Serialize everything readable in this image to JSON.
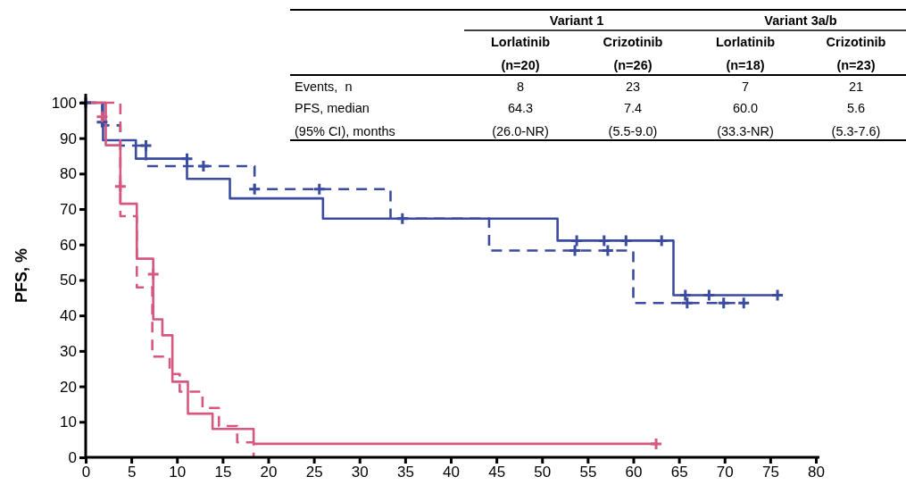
{
  "chart_data": [
    {
      "type": "step",
      "ylabel": "PFS, %",
      "xlim": [
        0,
        80
      ],
      "ylim": [
        0,
        102.5
      ],
      "xticks": [
        0,
        5,
        10,
        15,
        20,
        25,
        30,
        35,
        40,
        45,
        50,
        55,
        60,
        65,
        70,
        75,
        80
      ],
      "yticks": [
        0,
        10,
        20,
        30,
        40,
        50,
        60,
        70,
        80,
        90,
        100
      ],
      "grid": false,
      "series": [
        {
          "color": "#3a4ba0",
          "line_style": "solid",
          "x": [
            0,
            1.9,
            5.5,
            11.1,
            15.8,
            26,
            51.7,
            64.4,
            75.8
          ],
          "values": [
            100,
            89.4,
            84.2,
            78.5,
            73,
            67.3,
            61.1,
            45.7,
            45.7
          ]
        },
        {
          "color": "#3a4ba0",
          "line_style": "dashed",
          "x": [
            0,
            1.8,
            3.8,
            6.6,
            18.5,
            33.4,
            44.2,
            60,
            72.4
          ],
          "values": [
            100,
            93.6,
            87.9,
            82.1,
            75.6,
            67.3,
            58.3,
            43.5,
            43.5
          ]
        },
        {
          "color": "#d6587e",
          "line_style": "solid",
          "x": [
            0,
            2.2,
            3.8,
            5.6,
            7.4,
            8.4,
            9.5,
            11.2,
            13.9,
            18.4,
            62.5
          ],
          "values": [
            100,
            88,
            71.5,
            56,
            38.9,
            34.4,
            21.3,
            12.3,
            8,
            3.8,
            3.8
          ]
        },
        {
          "color": "#d6587e",
          "line_style": "dashed",
          "x": [
            0,
            3.8,
            5.6,
            7.3,
            9.2,
            10.3,
            12.8,
            14.6,
            16.6,
            18.4
          ],
          "values": [
            100,
            68,
            47.9,
            28.4,
            23.5,
            18.5,
            13.9,
            8.8,
            4.2,
            0
          ]
        },
        {
          "type": "scatter",
          "marker": "cross",
          "color": "#3a4ba0",
          "x": [
            0,
            1.8,
            11.1,
            34.7,
            53.8,
            56.8,
            59.2,
            63.1,
            65.7,
            68.3,
            75.8
          ],
          "values": [
            100,
            94.5,
            84.2,
            67.3,
            61.1,
            61.1,
            61.1,
            61.1,
            45.7,
            45.7,
            45.7
          ]
        },
        {
          "type": "scatter",
          "marker": "cross",
          "color": "#3a4ba0",
          "x": [
            6.6,
            12.9,
            18.5,
            25.6,
            53.6,
            57.2,
            65.9,
            69.9,
            72.1
          ],
          "values": [
            87.9,
            82.1,
            75.6,
            75.6,
            58.3,
            58.3,
            43.5,
            43.5,
            43.5
          ]
        },
        {
          "type": "scatter",
          "marker": "cross",
          "color": "#d6587e",
          "x": [
            1.8,
            3.8,
            7.4,
            62.5
          ],
          "values": [
            96,
            76.4,
            51.6,
            3.8
          ]
        }
      ]
    },
    {
      "type": "other",
      "annotations": [
        "Variant 1",
        "Variant 3a/b",
        "Lorlatinib",
        "Crizotinib",
        "Lorlatinib",
        "Crizotinib",
        "(n=20)",
        "(n=26)",
        "(n=18)",
        "(n=23)",
        "Events,  n",
        "8",
        "23",
        "7",
        "21",
        "PFS, median",
        "64.3",
        "7.4",
        "60.0",
        "5.6",
        "(95% CI), months",
        "(26.0-NR)",
        "(5.5-9.0)",
        "(33.3-NR)",
        "(5.3-7.6)"
      ]
    }
  ]
}
